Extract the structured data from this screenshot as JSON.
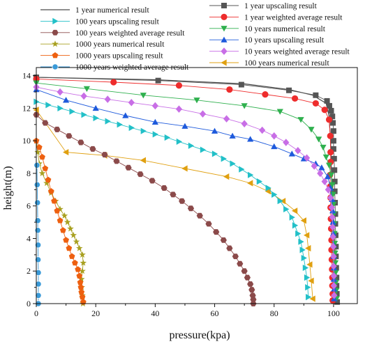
{
  "chart_data": {
    "type": "line",
    "xlabel": "pressure(kpa)",
    "ylabel": "height(m)",
    "xlim": [
      0,
      108
    ],
    "ylim": [
      0,
      14.5
    ],
    "xticks": [
      0,
      20,
      40,
      60,
      80,
      100
    ],
    "yticks": [
      0,
      2,
      4,
      6,
      8,
      10,
      12,
      14
    ],
    "grid": false,
    "legend": "top, two columns",
    "series": [
      {
        "name": "1 year numerical result",
        "color": "#4a4a4a",
        "marker": "none",
        "x": [
          0,
          40,
          70,
          85,
          93,
          97.5,
          98.5,
          99,
          99.3,
          99.5,
          99.7,
          99.8,
          99.9,
          100,
          100
        ],
        "y": [
          13.9,
          13.75,
          13.5,
          13.15,
          12.8,
          12.3,
          11.5,
          10,
          8,
          6,
          4,
          3,
          2,
          1,
          0
        ]
      },
      {
        "name": "1 year upscaling result",
        "color": "#555555",
        "marker": "square",
        "x": [
          0,
          41,
          69,
          85,
          94,
          97.8,
          98.6,
          99.2,
          99.6,
          99.8,
          100,
          100,
          100,
          100.2,
          100.3,
          100.4,
          100.4,
          100.5,
          100.6,
          100.6,
          100.7,
          100.8,
          100.8,
          100.9,
          101,
          101,
          101.1,
          101.2
        ],
        "y": [
          13.9,
          13.7,
          13.45,
          13.1,
          12.8,
          12.45,
          12.15,
          11.85,
          11.5,
          11.1,
          10.6,
          10,
          9.5,
          8.9,
          8.2,
          7.5,
          6.9,
          6.2,
          5.5,
          4.9,
          4.2,
          3.5,
          2.9,
          2.2,
          1.6,
          1.1,
          0.6,
          0.1
        ]
      },
      {
        "name": "1 year weighted average result",
        "color": "#ee2c2c",
        "marker": "circle",
        "x": [
          0,
          26,
          48,
          65,
          77,
          87,
          94,
          97,
          98.5,
          98.9,
          99,
          99,
          98.8,
          98.9,
          99,
          99,
          99.1,
          99.2,
          99.3,
          99.3,
          99.4,
          99.5,
          99.6,
          99.6,
          99.7,
          99.7
        ],
        "y": [
          13.8,
          13.6,
          13.4,
          13.15,
          12.85,
          12.6,
          12.3,
          11.9,
          11.3,
          10.3,
          9.3,
          8.7,
          7.9,
          7.2,
          6.5,
          5.9,
          5.2,
          4.6,
          3.9,
          3.3,
          2.7,
          2.1,
          1.6,
          1.1,
          0.6,
          0.2
        ]
      },
      {
        "name": "10 years numerical result",
        "color": "#2fb04e",
        "marker": "triangle-down",
        "x": [
          0,
          17,
          36,
          54,
          70,
          82,
          89,
          92.5,
          95,
          96.5,
          97.5,
          98.5,
          99.2,
          99.6,
          99.8,
          100,
          100.1,
          100.2,
          100.3,
          100.4,
          100.5,
          100.6,
          100.7,
          100.8,
          100.9,
          101
        ],
        "y": [
          13.55,
          13.2,
          12.8,
          12.5,
          12.15,
          11.8,
          11.3,
          10.7,
          10.1,
          9.6,
          9,
          8.5,
          7.9,
          7.3,
          6.7,
          6.1,
          5.5,
          4.9,
          4.3,
          3.7,
          3.1,
          2.5,
          1.9,
          1.3,
          0.8,
          0.3
        ]
      },
      {
        "name": "10 years upscaling result",
        "color": "#1e5adc",
        "marker": "triangle-up",
        "x": [
          0,
          10,
          20,
          30,
          40,
          50,
          60,
          66,
          72,
          80,
          86,
          90,
          94,
          96,
          98,
          99,
          99.5,
          99.7,
          99.8,
          99.9,
          100,
          100,
          100.1,
          100.1,
          100.2,
          100.2
        ],
        "y": [
          13.15,
          12.5,
          12,
          11.55,
          11.15,
          10.9,
          10.6,
          10.3,
          10.1,
          9.65,
          9.2,
          8.9,
          8.6,
          8.35,
          7.8,
          7.1,
          6.4,
          5.7,
          5,
          4.3,
          3.6,
          2.9,
          2.2,
          1.5,
          0.9,
          0.3
        ]
      },
      {
        "name": "10 years weighted average result",
        "color": "#c86ee6",
        "marker": "diamond",
        "x": [
          0,
          8,
          16,
          24,
          32,
          40,
          48,
          56,
          64,
          70,
          76,
          80,
          84,
          88,
          91,
          93.5,
          95.5,
          97,
          98.2,
          99,
          99.4,
          99.6,
          99.7,
          99.8,
          99.9,
          100,
          100,
          100.1,
          100.1,
          100.2
        ],
        "y": [
          13.3,
          13,
          12.75,
          12.55,
          12.35,
          12.15,
          11.95,
          11.65,
          11.35,
          11.05,
          10.65,
          10.3,
          9.9,
          9.4,
          8.95,
          8.45,
          8,
          7.5,
          7,
          6.5,
          5.9,
          5.3,
          4.7,
          4.1,
          3.5,
          2.9,
          2.3,
          1.7,
          1.1,
          0.5
        ]
      },
      {
        "name": "100 years numerical result",
        "color": "#e0a010",
        "marker": "triangle-left",
        "x": [
          0,
          10,
          23,
          36,
          50,
          64,
          72,
          78,
          83,
          87,
          90,
          91,
          91.5,
          92,
          92.5,
          93
        ],
        "y": [
          11.9,
          9.3,
          9.1,
          8.8,
          8.3,
          7.8,
          7.4,
          6.9,
          6.3,
          5.7,
          5.1,
          4.2,
          3.4,
          2.4,
          1.4,
          0.3
        ]
      },
      {
        "name": "100 years upscaling result",
        "color": "#22c0c8",
        "marker": "triangle-right",
        "x": [
          0,
          4,
          8,
          12,
          16,
          20,
          24,
          28,
          32,
          36,
          40,
          44,
          48,
          52,
          56,
          60,
          63,
          66,
          69,
          72,
          75,
          78,
          80,
          82,
          84,
          86,
          87,
          88,
          89,
          89.5,
          90,
          90.5,
          91,
          91.3,
          91.5
        ],
        "y": [
          12.4,
          12.2,
          12,
          11.8,
          11.6,
          11.4,
          11.2,
          11,
          10.8,
          10.6,
          10.4,
          10.2,
          9.95,
          9.7,
          9.45,
          9.2,
          8.9,
          8.6,
          8.25,
          7.9,
          7.5,
          7.1,
          6.7,
          6.3,
          5.8,
          5.3,
          4.8,
          4.3,
          3.8,
          3.3,
          2.8,
          2.2,
          1.6,
          1,
          0.4
        ]
      },
      {
        "name": "100 years weighted average result",
        "color": "#8b4a4a",
        "marker": "hexagon",
        "x": [
          0,
          3,
          7,
          11,
          15,
          19,
          23,
          27,
          31,
          35,
          39,
          43,
          46,
          49,
          52,
          55,
          58,
          60.5,
          63,
          65,
          67,
          68.5,
          70,
          71,
          72,
          72.5,
          72.8,
          73,
          73
        ],
        "y": [
          11.6,
          11.1,
          10.7,
          10.3,
          9.9,
          9.5,
          9.15,
          8.75,
          8.35,
          7.95,
          7.55,
          7.1,
          6.7,
          6.3,
          5.85,
          5.4,
          4.9,
          4.4,
          3.9,
          3.4,
          2.9,
          2.45,
          2,
          1.6,
          1.2,
          0.85,
          0.5,
          0.25,
          0
        ]
      },
      {
        "name": "1000 years numerical result",
        "color": "#a8a020",
        "marker": "star",
        "x": [
          0,
          0.5,
          1,
          2,
          3.5,
          5,
          6.5,
          8,
          9.5,
          10.5,
          11.5,
          12.5,
          13.5,
          14.5,
          15.5,
          15.8,
          15.5,
          15.2,
          15.3,
          15.5,
          15.7
        ],
        "y": [
          10,
          9.3,
          8.6,
          8,
          7.4,
          6.8,
          6.3,
          5.8,
          5.4,
          5,
          4.6,
          4.2,
          3.8,
          3.4,
          3,
          2.5,
          2,
          1.5,
          1,
          0.5,
          0
        ]
      },
      {
        "name": "1000 years upscaling result",
        "color": "#ee6010",
        "marker": "pentagon",
        "x": [
          0,
          1,
          2,
          3,
          4,
          5,
          6,
          7,
          8,
          9,
          10,
          11,
          12,
          13,
          14,
          14.5,
          14.8,
          15,
          15.2,
          15.5,
          15.8
        ],
        "y": [
          10,
          9.6,
          9,
          8.3,
          7.6,
          6.9,
          6.3,
          5.7,
          5.1,
          4.5,
          3.9,
          3.4,
          2.9,
          2.5,
          2.1,
          1.7,
          1.3,
          1,
          0.7,
          0.4,
          0.1
        ]
      },
      {
        "name": "1000 years weighted average result",
        "color": "#3a9ad8",
        "marker": "sphere",
        "x": [
          0.2,
          0.3,
          0.4,
          0.5,
          0.5,
          0.6,
          0.6,
          0.7,
          0.7,
          0.7,
          0.7
        ],
        "y": [
          8.5,
          7.3,
          6.2,
          5.1,
          4.5,
          3.6,
          2.7,
          1.9,
          1.2,
          0.5,
          0
        ]
      }
    ]
  }
}
